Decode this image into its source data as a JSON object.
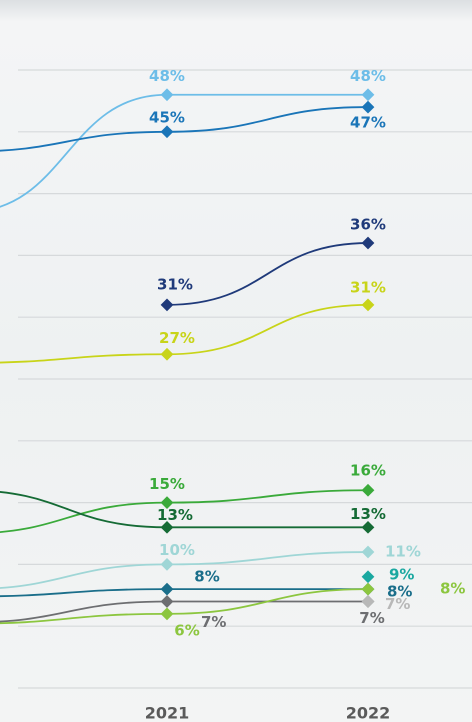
{
  "chart_data": {
    "type": "line",
    "categories": [
      null,
      "2021",
      "2022"
    ],
    "ylim": [
      0,
      50
    ],
    "yticks": [
      0,
      5,
      10,
      15,
      20,
      25,
      30,
      35,
      40,
      45,
      50
    ],
    "grid": true,
    "series": [
      {
        "color": "#6dbde8",
        "values": [
          38.5,
          48,
          48
        ],
        "value_labels": [
          null,
          "48%",
          "48%"
        ]
      },
      {
        "color": "#1a75b8",
        "values": [
          43.4,
          45,
          47
        ],
        "value_labels": [
          null,
          "45%",
          "47%"
        ]
      },
      {
        "color": "#1f3a7a",
        "values": [
          null,
          31,
          36
        ],
        "value_labels": [
          null,
          "31%",
          "36%"
        ]
      },
      {
        "color": "#c8d419",
        "values": [
          26.3,
          27,
          31
        ],
        "value_labels": [
          null,
          "27%",
          "31%"
        ]
      },
      {
        "color": "#3aaa3a",
        "values": [
          12.5,
          15,
          16
        ],
        "value_labels": [
          null,
          "15%",
          "16%"
        ]
      },
      {
        "color": "#156b35",
        "values": [
          16,
          13,
          13
        ],
        "value_labels": [
          null,
          "13%",
          "13%"
        ]
      },
      {
        "color": "#9fd6d6",
        "values": [
          8,
          10,
          11
        ],
        "value_labels": [
          null,
          "10%",
          "11%"
        ]
      },
      {
        "color": "#1a6e8a",
        "values": [
          7.4,
          8,
          8
        ],
        "value_labels": [
          null,
          "8%",
          "8%"
        ]
      },
      {
        "color": "#6d6e71",
        "values": [
          5.3,
          7,
          7
        ],
        "value_labels": [
          null,
          "7%",
          "7%"
        ]
      },
      {
        "color": "#8cc63f",
        "values": [
          5.2,
          6,
          8
        ],
        "value_labels": [
          null,
          "6%",
          "8%"
        ]
      },
      {
        "color": "#1aa8a0",
        "values": [
          null,
          null,
          9
        ],
        "value_labels": [
          null,
          null,
          "9%"
        ]
      },
      {
        "color": "#b8b8b8",
        "values": [
          null,
          null,
          7
        ],
        "value_labels": [
          null,
          null,
          "7%"
        ]
      }
    ]
  }
}
